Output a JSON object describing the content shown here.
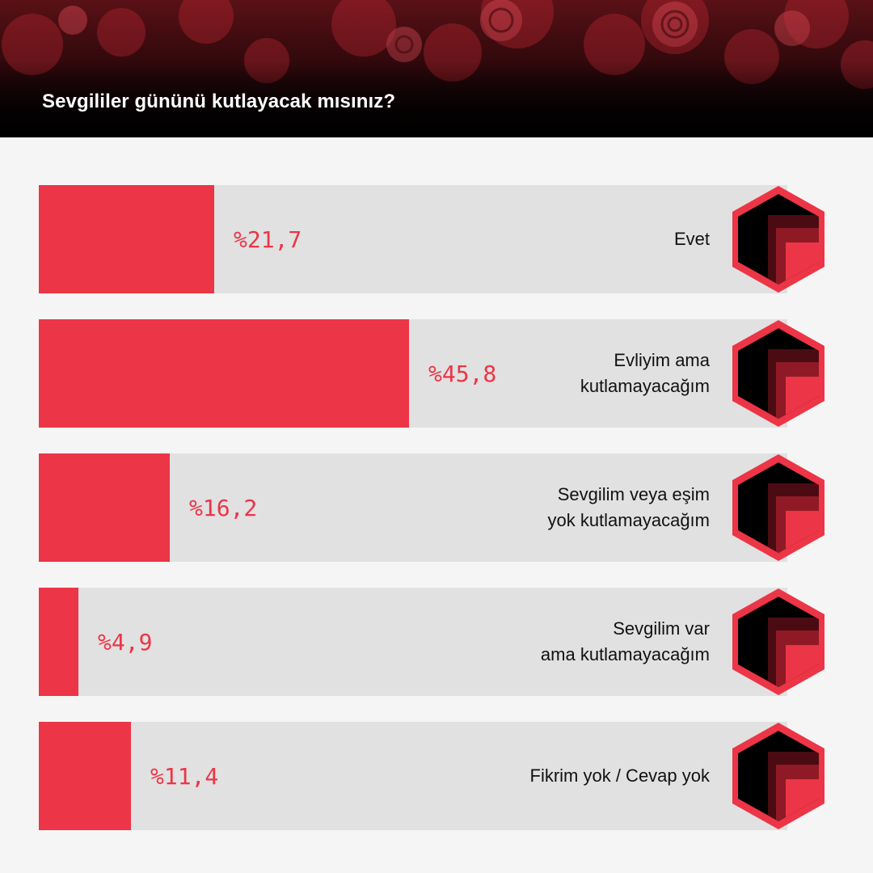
{
  "title": "Sevgililer gününü kutlayacak mısınız?",
  "colors": {
    "accent": "#ec3546",
    "track": "#e1e1e1",
    "background": "#f5f5f5",
    "header_dark": "#0a0203",
    "label_text": "#111111"
  },
  "icon": "hexagon-chevron-icon",
  "chart_data": {
    "type": "bar",
    "orientation": "horizontal",
    "title": "Sevgililer gününü kutlayacak mısınız?",
    "unit": "%",
    "xlim": [
      0,
      100
    ],
    "categories": [
      "Evet",
      "Evliyim ama\nkutlamayacağım",
      "Sevgilim veya eşim\nyok kutlamayacağım",
      "Sevgilim var\nama kutlamayacağım",
      "Fikrim yok / Cevap yok"
    ],
    "values": [
      21.7,
      45.8,
      16.2,
      4.9,
      11.4
    ],
    "value_labels": [
      "%21,7",
      "%45,8",
      "%16,2",
      "%4,9",
      "%11,4"
    ]
  }
}
